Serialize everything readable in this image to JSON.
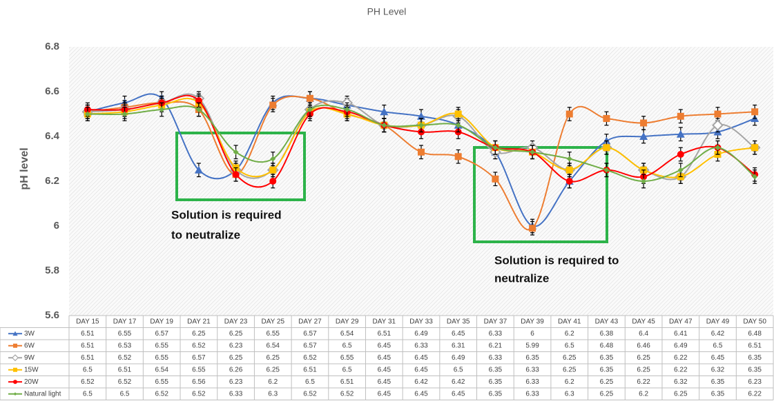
{
  "chart_data": {
    "type": "line",
    "title": "PH Level",
    "y_label": "pH level",
    "categories": [
      "DAY 15",
      "DAY 17",
      "DAY 19",
      "DAY 21",
      "DAY 23",
      "DAY 25",
      "DAY 27",
      "DAY 29",
      "DAY 31",
      "DAY 33",
      "DAY 35",
      "DAY 37",
      "DAY 39",
      "DAY 41",
      "DAY 43",
      "DAY 45",
      "DAY 47",
      "DAY 49",
      "DAY 50"
    ],
    "series": [
      {
        "name": "3W",
        "color": "#4472c4",
        "marker": "triangle",
        "values": [
          6.51,
          6.55,
          6.57,
          6.25,
          6.25,
          6.55,
          6.57,
          6.54,
          6.51,
          6.49,
          6.45,
          6.33,
          6,
          6.2,
          6.38,
          6.4,
          6.41,
          6.42,
          6.48
        ]
      },
      {
        "name": "6W",
        "color": "#ed7d31",
        "marker": "square",
        "values": [
          6.51,
          6.53,
          6.55,
          6.52,
          6.23,
          6.54,
          6.57,
          6.5,
          6.45,
          6.33,
          6.31,
          6.21,
          5.99,
          6.5,
          6.48,
          6.46,
          6.49,
          6.5,
          6.51
        ]
      },
      {
        "name": "9W",
        "color": "#a5a5a5",
        "marker": "hollow-diamond",
        "values": [
          6.51,
          6.52,
          6.55,
          6.57,
          6.25,
          6.25,
          6.52,
          6.55,
          6.45,
          6.45,
          6.49,
          6.33,
          6.35,
          6.25,
          6.35,
          6.25,
          6.22,
          6.45,
          6.35
        ]
      },
      {
        "name": "15W",
        "color": "#ffc000",
        "marker": "square",
        "values": [
          6.5,
          6.51,
          6.54,
          6.55,
          6.26,
          6.25,
          6.51,
          6.5,
          6.45,
          6.45,
          6.5,
          6.35,
          6.33,
          6.25,
          6.35,
          6.25,
          6.22,
          6.32,
          6.35
        ]
      },
      {
        "name": "20W",
        "color": "#ff0000",
        "marker": "circle",
        "values": [
          6.52,
          6.52,
          6.55,
          6.56,
          6.23,
          6.2,
          6.5,
          6.51,
          6.45,
          6.42,
          6.42,
          6.35,
          6.33,
          6.2,
          6.25,
          6.22,
          6.32,
          6.35,
          6.23
        ]
      },
      {
        "name": "Natural light",
        "color": "#70ad47",
        "marker": "diamond",
        "values": [
          6.5,
          6.5,
          6.52,
          6.52,
          6.33,
          6.3,
          6.52,
          6.52,
          6.45,
          6.45,
          6.45,
          6.35,
          6.33,
          6.3,
          6.25,
          6.2,
          6.25,
          6.35,
          6.22
        ]
      }
    ],
    "error": 0.03,
    "ylim": [
      5.6,
      6.8
    ],
    "yticks": [
      5.6,
      5.8,
      6,
      6.2,
      6.4,
      6.6,
      6.8
    ],
    "grid": false,
    "annotations": [
      {
        "lines": [
          "Solution is required",
          "to neutralize"
        ]
      },
      {
        "lines": [
          "Solution is required to",
          "neutralize"
        ]
      }
    ]
  }
}
